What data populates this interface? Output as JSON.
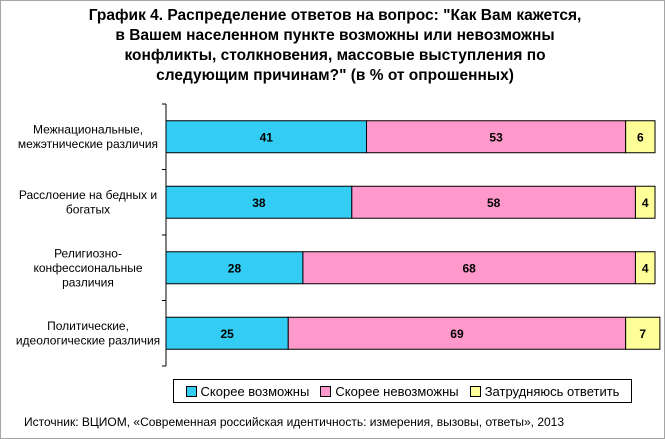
{
  "chart_data": {
    "type": "bar",
    "orientation": "horizontal",
    "stacked": true,
    "title": [
      "График 4. Распределение ответов на вопрос: \"Как Вам кажется,",
      "в Вашем населенном пункте возможны или невозможны",
      "конфликты, столкновения, массовые выступления по",
      "следующим причинам?\" (в % от опрошенных)"
    ],
    "categories": [
      [
        "Межнациональные,",
        "межэтнические различия"
      ],
      [
        "Расслоение на бедных и",
        "богатых"
      ],
      [
        "Религиозно-",
        "конфессиональные",
        "различия"
      ],
      [
        "Политические,",
        "идеологические различия"
      ]
    ],
    "series": [
      {
        "name": "Скорее возможны",
        "values": [
          41,
          38,
          28,
          25
        ],
        "color": "#33ccf2"
      },
      {
        "name": "Скорее невозможны",
        "values": [
          53,
          58,
          68,
          69
        ],
        "color": "#ff99cc"
      },
      {
        "name": "Затрудняюсь ответить",
        "values": [
          6,
          4,
          4,
          7
        ],
        "color": "#ffff99"
      }
    ],
    "xlim": [
      0,
      100
    ],
    "grid": false,
    "legend_position": "bottom"
  },
  "source": "Источник: ВЦИОМ, «Современная российская идентичность: измерения, вызовы, ответы», 2013"
}
